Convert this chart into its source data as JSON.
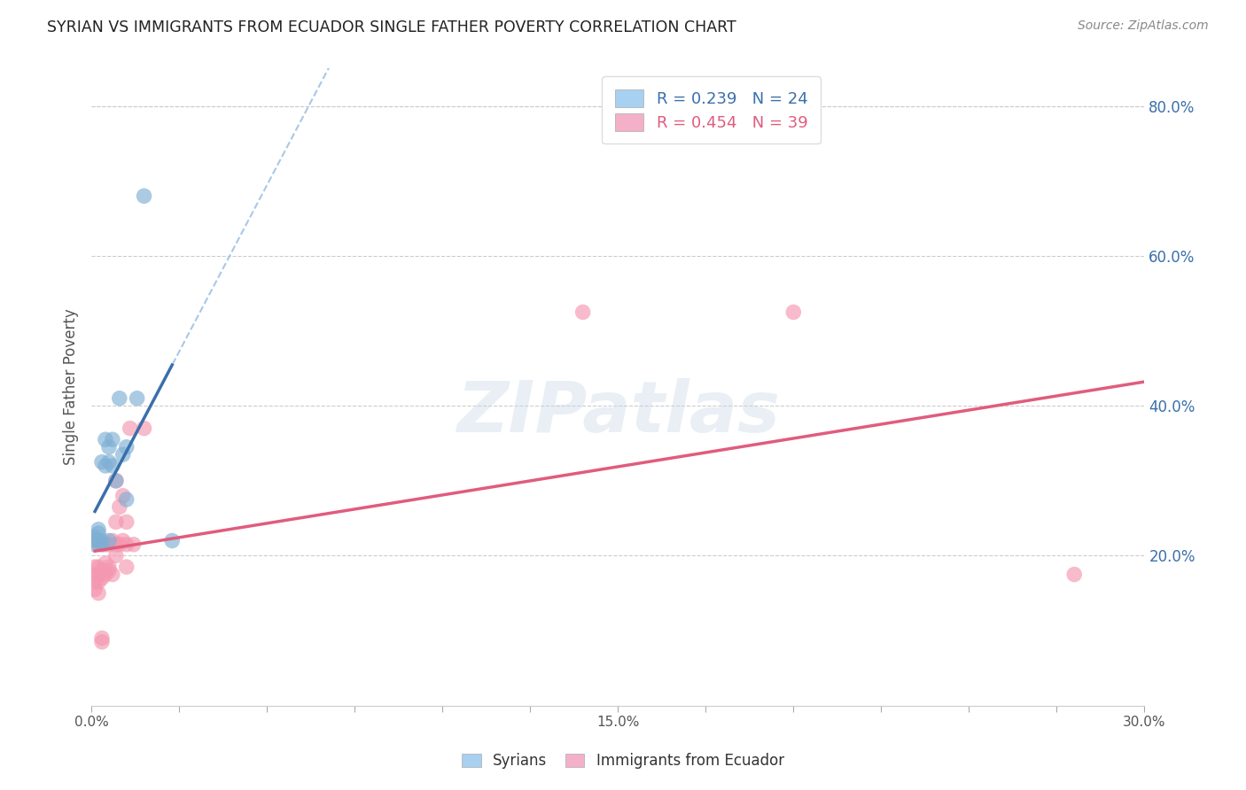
{
  "title": "SYRIAN VS IMMIGRANTS FROM ECUADOR SINGLE FATHER POVERTY CORRELATION CHART",
  "source": "Source: ZipAtlas.com",
  "ylabel": "Single Father Poverty",
  "xlabel_syrians": "Syrians",
  "xlabel_ecuador": "Immigrants from Ecuador",
  "r_syrians": 0.239,
  "n_syrians": 24,
  "r_ecuador": 0.454,
  "n_ecuador": 39,
  "xlim": [
    0.0,
    0.3
  ],
  "ylim": [
    -0.02,
    0.85
  ],
  "plot_ylim": [
    0.0,
    0.85
  ],
  "xticks": [
    0.0,
    0.025,
    0.05,
    0.075,
    0.1,
    0.125,
    0.15,
    0.175,
    0.2,
    0.225,
    0.25,
    0.275,
    0.3
  ],
  "xtick_labels_show": [
    0.0,
    0.15,
    0.3
  ],
  "yticks": [
    0.2,
    0.4,
    0.6,
    0.8
  ],
  "ytick_labels": [
    "20.0%",
    "40.0%",
    "60.0%",
    "80.0%"
  ],
  "color_syrians": "#7fafd4",
  "color_ecuador": "#f497b0",
  "color_syrians_line": "#3a6faa",
  "color_ecuador_line": "#e05c7d",
  "color_syrians_dashed": "#a8c8e8",
  "color_text_right": "#3a6faa",
  "color_grid": "#cccccc",
  "watermark_text": "ZIPatlas",
  "syrians_x": [
    0.001,
    0.001,
    0.001,
    0.002,
    0.002,
    0.002,
    0.003,
    0.003,
    0.003,
    0.004,
    0.004,
    0.005,
    0.005,
    0.005,
    0.006,
    0.006,
    0.007,
    0.008,
    0.009,
    0.01,
    0.01,
    0.013,
    0.015,
    0.023
  ],
  "syrians_y": [
    0.215,
    0.22,
    0.225,
    0.22,
    0.23,
    0.235,
    0.215,
    0.22,
    0.325,
    0.32,
    0.355,
    0.325,
    0.345,
    0.22,
    0.32,
    0.355,
    0.3,
    0.41,
    0.335,
    0.345,
    0.275,
    0.41,
    0.68,
    0.22
  ],
  "ecuador_x": [
    0.001,
    0.001,
    0.001,
    0.001,
    0.002,
    0.002,
    0.002,
    0.002,
    0.002,
    0.003,
    0.003,
    0.003,
    0.003,
    0.003,
    0.004,
    0.004,
    0.004,
    0.005,
    0.005,
    0.005,
    0.006,
    0.006,
    0.007,
    0.007,
    0.007,
    0.007,
    0.008,
    0.008,
    0.009,
    0.009,
    0.01,
    0.01,
    0.01,
    0.011,
    0.012,
    0.015,
    0.14,
    0.2,
    0.28
  ],
  "ecuador_y": [
    0.155,
    0.165,
    0.175,
    0.185,
    0.15,
    0.165,
    0.175,
    0.185,
    0.215,
    0.085,
    0.09,
    0.17,
    0.18,
    0.215,
    0.175,
    0.19,
    0.215,
    0.18,
    0.185,
    0.215,
    0.175,
    0.22,
    0.2,
    0.215,
    0.245,
    0.3,
    0.215,
    0.265,
    0.22,
    0.28,
    0.185,
    0.215,
    0.245,
    0.37,
    0.215,
    0.37,
    0.525,
    0.525,
    0.175
  ],
  "legend_box_color_syrians": "#a8d0f0",
  "legend_box_color_ecuador": "#f4b0c8",
  "background_color": "#ffffff"
}
